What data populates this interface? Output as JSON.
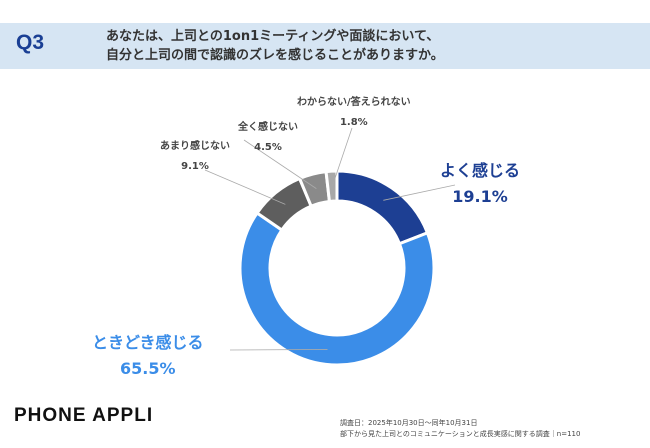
{
  "header": {
    "q_label": "Q3",
    "question_line1": "あなたは、上司との1on1ミーティングや面談において、",
    "question_line2": "自分と上司の間で認識のズレを感じることがありますか。"
  },
  "chart_data": {
    "type": "pie",
    "donut": true,
    "categories": [
      "よく感じる",
      "ときどき感じる",
      "あまり感じない",
      "全く感じない",
      "わからない/答えられない"
    ],
    "values": [
      19.1,
      65.5,
      9.1,
      4.5,
      1.8
    ],
    "value_labels": [
      "19.1%",
      "65.5%",
      "9.1%",
      "4.5%",
      "1.8%"
    ],
    "colors": [
      "#1d3f93",
      "#3b8de8",
      "#5e5e5e",
      "#8a8a8a",
      "#a8a8a8"
    ],
    "label_colors": [
      "#1d3f93",
      "#3b8de8",
      "#444444",
      "#444444",
      "#444444"
    ]
  },
  "footer": {
    "logo": "PHONE APPLI",
    "survey_date": "調査日：2025年10月30日～同年10月31日",
    "survey_name": "部下から見た上司とのコミュニケーションと成長実感に関する調査｜n=110"
  }
}
